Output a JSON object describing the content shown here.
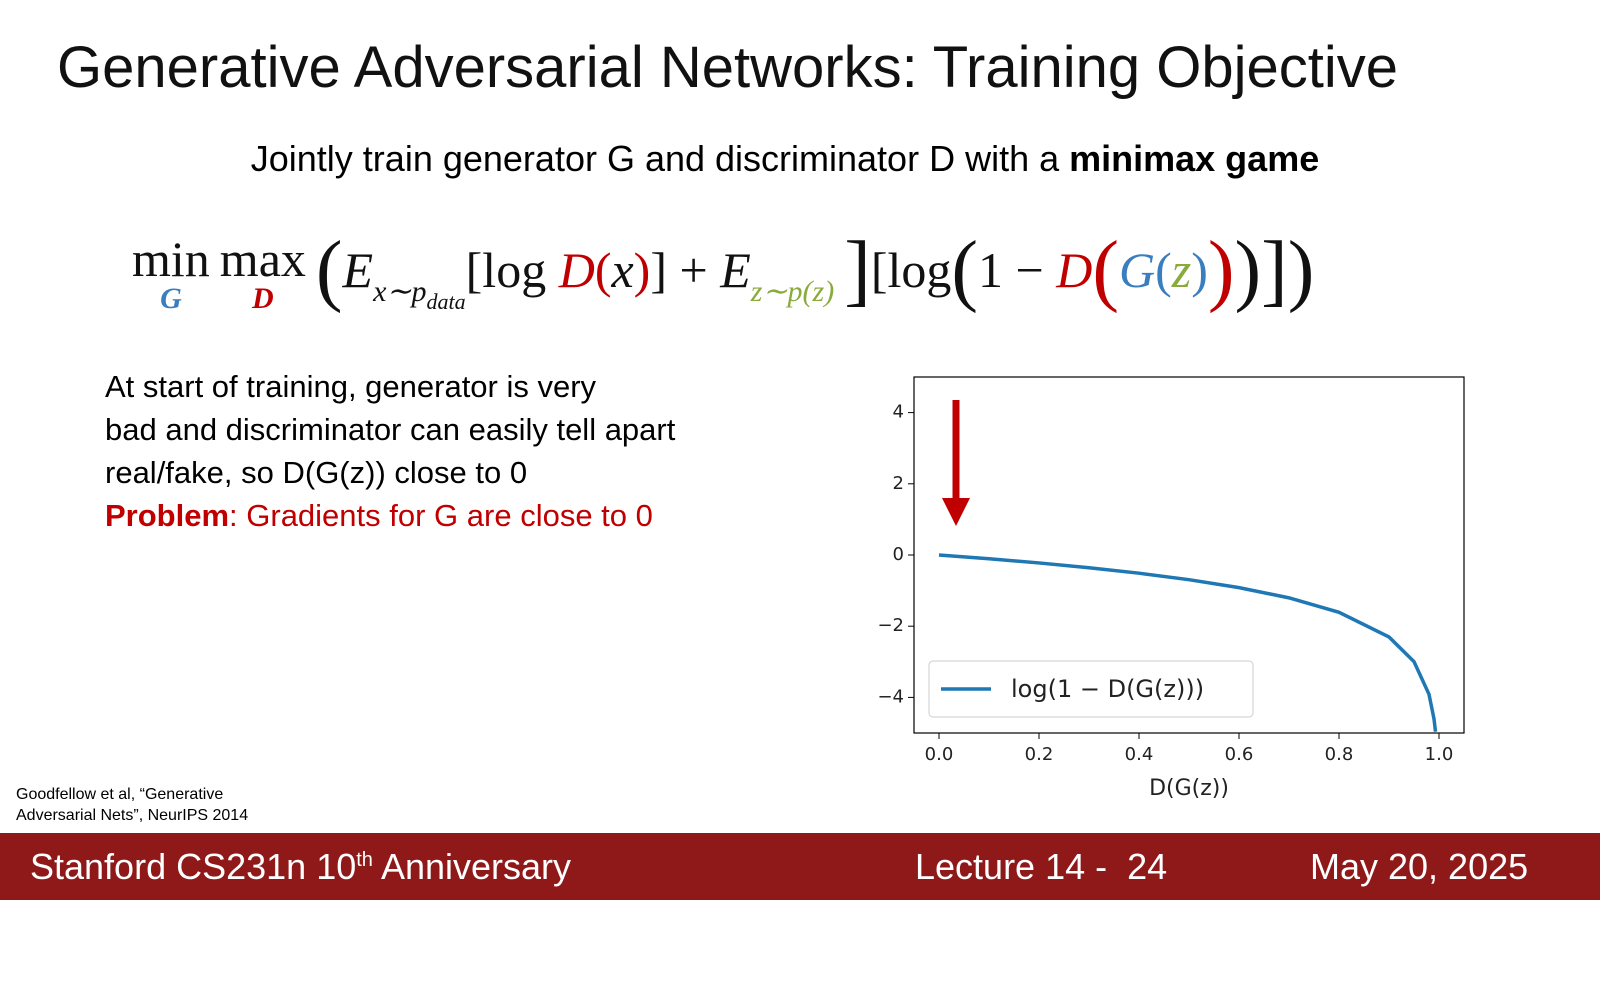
{
  "header": {
    "title": "Generative Adversarial Networks: Training Objective",
    "subtitle": "Jointly train generator G and discriminator D with a ",
    "subtitle_bold": "minimax game"
  },
  "equation": {
    "min": "min",
    "min_under": "G",
    "max": "max",
    "max_under": "D",
    "parts": [
      "(",
      "E",
      "x∼p",
      "data",
      "[log ",
      "D",
      "(",
      "x",
      ")",
      "] + ",
      "E",
      "z∼p(z)",
      "[log",
      "(",
      "1 − ",
      "D",
      "(",
      "G",
      "(",
      "z",
      ")",
      ")",
      ")",
      "]",
      "]",
      ")"
    ]
  },
  "body": {
    "lines": [
      "At start of training, generator is very",
      "bad and discriminator can easily tell apart",
      "real/fake, so D(G(z)) close to 0"
    ],
    "problem_label": "Problem",
    "problem_text": ": Gradients for G are close to 0"
  },
  "citation": [
    "Goodfellow et al, “Generative",
    "Adversarial Nets”, NeurIPS 2014"
  ],
  "footer": {
    "course": "Stanford CS231n 10",
    "sup": "th",
    "course_end": " Anniversary",
    "lecture": "Lecture 14 -  24",
    "date": "May 20, 2025"
  },
  "chart_data": {
    "type": "line",
    "xlabel": "D(G(z))",
    "x": [
      0,
      0.1,
      0.2,
      0.3,
      0.4,
      0.5,
      0.6,
      0.7,
      0.8,
      0.9,
      0.95,
      0.98,
      0.99,
      0.993
    ],
    "series": [
      {
        "name": "log(1 − D(G(z)))",
        "color": "#1f77b4",
        "values": [
          0,
          -0.105,
          -0.223,
          -0.357,
          -0.511,
          -0.693,
          -0.916,
          -1.204,
          -1.609,
          -2.303,
          -2.996,
          -3.912,
          -4.605,
          -4.962
        ]
      }
    ],
    "xlim": [
      -0.05,
      1.05
    ],
    "ylim": [
      -5,
      5
    ],
    "xticks": [
      {
        "value": 0,
        "label": "0.0"
      },
      0.2,
      0.4,
      0.6,
      0.8,
      {
        "value": 1,
        "label": "1.0"
      }
    ],
    "yticks": [
      {
        "value": -4,
        "label": "−4"
      },
      {
        "value": -2,
        "label": "−2"
      },
      0,
      2,
      4
    ],
    "legend": "lower left"
  }
}
